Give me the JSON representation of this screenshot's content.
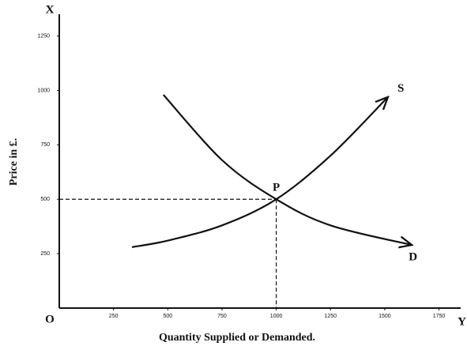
{
  "chart_data": {
    "type": "line",
    "x_label": "Quantity Supplied or Demanded.",
    "y_label": "Price in £.",
    "axis_names": {
      "x_end": "Y",
      "y_end": "X",
      "origin": "O"
    },
    "xlim": [
      0,
      1850
    ],
    "ylim": [
      0,
      1350
    ],
    "xticks": [
      250,
      500,
      750,
      1000,
      1250,
      1500,
      1750
    ],
    "yticks": [
      250,
      500,
      750,
      1000,
      1250
    ],
    "color": "#111111",
    "series": [
      {
        "name": "S",
        "x": [
          335,
          500,
          750,
          1000,
          1250,
          1515
        ],
        "values": [
          280,
          310,
          380,
          500,
          700,
          970
        ]
      },
      {
        "name": "D",
        "x": [
          480,
          750,
          1000,
          1250,
          1625
        ],
        "values": [
          980,
          680,
          500,
          380,
          290
        ]
      }
    ],
    "annotations": [
      {
        "text": "P",
        "x": 1000,
        "y": 500
      }
    ]
  }
}
